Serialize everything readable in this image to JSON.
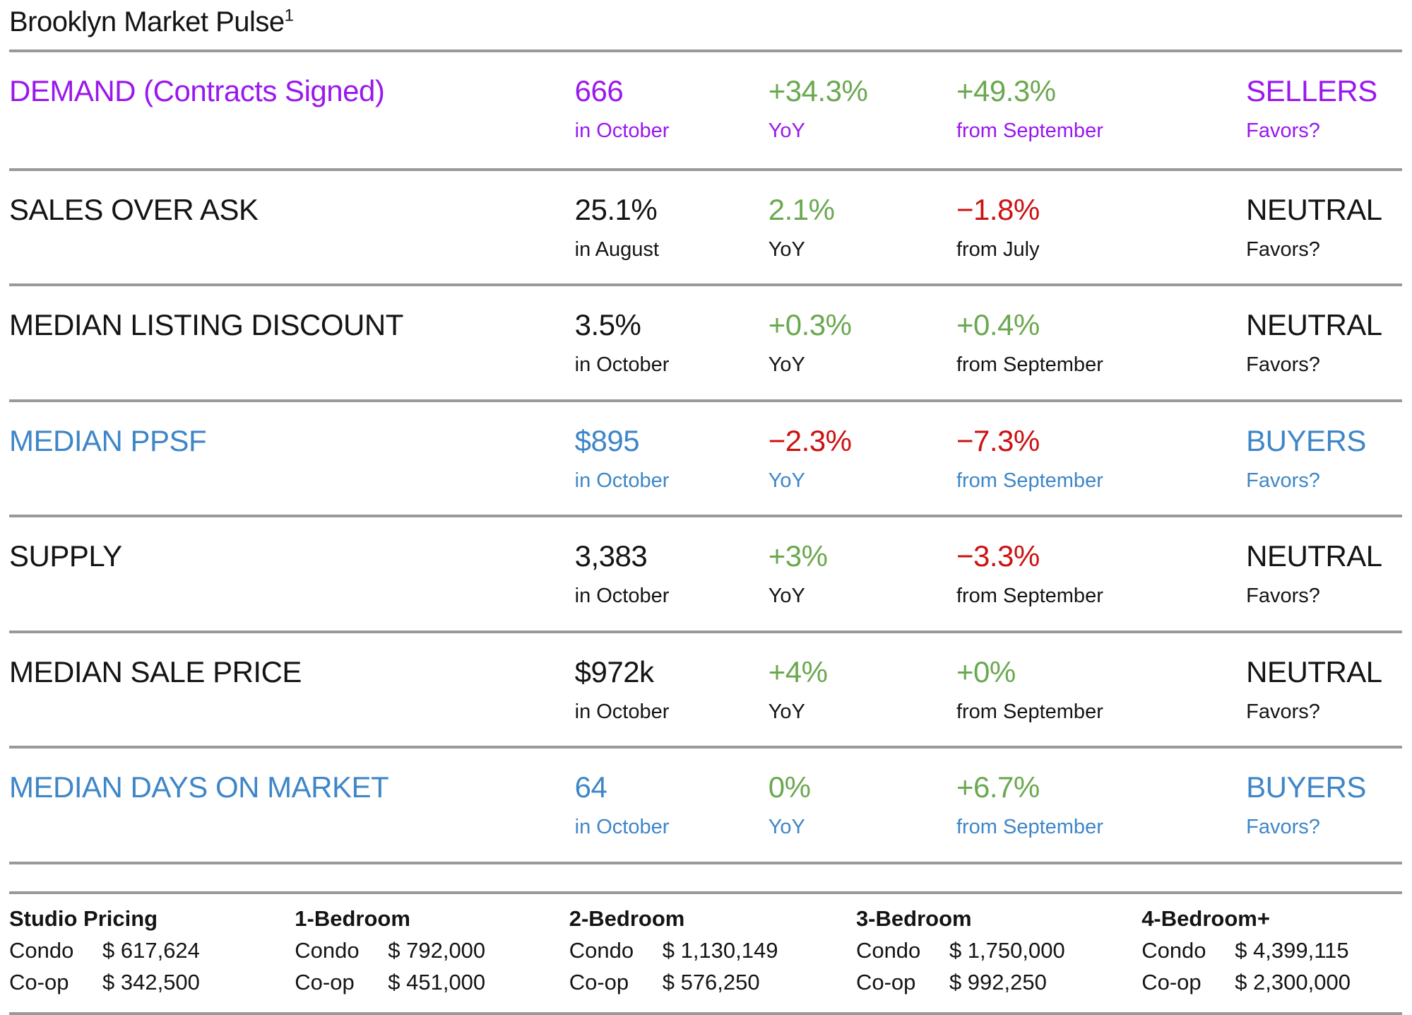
{
  "title": {
    "text": "Brooklyn Market Pulse",
    "footnote_marker": "1"
  },
  "colors": {
    "purple": "#9a17ef",
    "blue": "#3e86c8",
    "green": "#6aa84f",
    "red": "#cc1111",
    "dark": "#141414",
    "rule": "#999999"
  },
  "metrics": [
    {
      "label": "DEMAND (Contracts Signed)",
      "theme": "purple",
      "value": "666",
      "value_sub": "in October",
      "yoy": "+34.3%",
      "yoy_color": "green",
      "yoy_sub": "YoY",
      "mom": "+49.3%",
      "mom_color": "green",
      "mom_sub": "from September",
      "favors": "SELLERS",
      "favors_sub": "Favors?"
    },
    {
      "label": "SALES OVER ASK",
      "theme": "dark",
      "value": "25.1%",
      "value_sub": "in August",
      "yoy": "2.1%",
      "yoy_color": "green",
      "yoy_sub": "YoY",
      "mom": "−1.8%",
      "mom_color": "red",
      "mom_sub": "from July",
      "favors": "NEUTRAL",
      "favors_sub": "Favors?"
    },
    {
      "label": "MEDIAN LISTING DISCOUNT",
      "theme": "dark",
      "value": "3.5%",
      "value_sub": "in October",
      "yoy": "+0.3%",
      "yoy_color": "green",
      "yoy_sub": "YoY",
      "mom": "+0.4%",
      "mom_color": "green",
      "mom_sub": "from September",
      "favors": "NEUTRAL",
      "favors_sub": "Favors?"
    },
    {
      "label": "MEDIAN PPSF",
      "theme": "blue",
      "value": "$895",
      "value_sub": "in October",
      "yoy": "−2.3%",
      "yoy_color": "red",
      "yoy_sub": "YoY",
      "mom": "−7.3%",
      "mom_color": "red",
      "mom_sub": "from September",
      "favors": "BUYERS",
      "favors_sub": "Favors?"
    },
    {
      "label": "SUPPLY",
      "theme": "dark",
      "value": "3,383",
      "value_sub": "in October",
      "yoy": "+3%",
      "yoy_color": "green",
      "yoy_sub": "YoY",
      "mom": "−3.3%",
      "mom_color": "red",
      "mom_sub": "from September",
      "favors": "NEUTRAL",
      "favors_sub": "Favors?"
    },
    {
      "label": "MEDIAN SALE PRICE",
      "theme": "dark",
      "value": "$972k",
      "value_sub": "in October",
      "yoy": "+4%",
      "yoy_color": "green",
      "yoy_sub": "YoY",
      "mom": "+0%",
      "mom_color": "green",
      "mom_sub": "from September",
      "favors": "NEUTRAL",
      "favors_sub": "Favors?"
    },
    {
      "label": "MEDIAN DAYS ON MARKET",
      "theme": "blue",
      "value": "64",
      "value_sub": "in October",
      "yoy": "0%",
      "yoy_color": "green",
      "yoy_sub": "YoY",
      "mom": "+6.7%",
      "mom_color": "green",
      "mom_sub": "from September",
      "favors": "BUYERS",
      "favors_sub": "Favors?"
    }
  ],
  "pricing": {
    "columns": [
      {
        "header": "Studio Pricing",
        "rows": [
          {
            "label": "Condo",
            "price": "$ 617,624"
          },
          {
            "label": "Co-op",
            "price": "$ 342,500"
          }
        ]
      },
      {
        "header": "1-Bedroom",
        "rows": [
          {
            "label": "Condo",
            "price": "$ 792,000"
          },
          {
            "label": "Co-op",
            "price": "$ 451,000"
          }
        ]
      },
      {
        "header": "2-Bedroom",
        "rows": [
          {
            "label": "Condo",
            "price": "$ 1,130,149"
          },
          {
            "label": "Co-op",
            "price": "$ 576,250"
          }
        ]
      },
      {
        "header": "3-Bedroom",
        "rows": [
          {
            "label": "Condo",
            "price": "$ 1,750,000"
          },
          {
            "label": "Co-op",
            "price": "$ 992,250"
          }
        ]
      },
      {
        "header": "4-Bedroom+",
        "rows": [
          {
            "label": "Condo",
            "price": "$ 4,399,115"
          },
          {
            "label": "Co-op",
            "price": "$ 2,300,000"
          }
        ]
      }
    ]
  }
}
